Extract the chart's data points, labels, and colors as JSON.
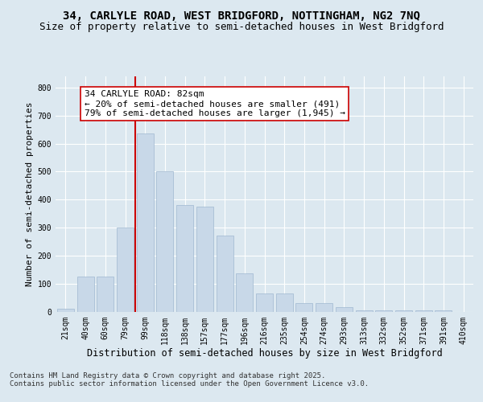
{
  "title1": "34, CARLYLE ROAD, WEST BRIDGFORD, NOTTINGHAM, NG2 7NQ",
  "title2": "Size of property relative to semi-detached houses in West Bridgford",
  "xlabel": "Distribution of semi-detached houses by size in West Bridgford",
  "ylabel": "Number of semi-detached properties",
  "categories": [
    "21sqm",
    "40sqm",
    "60sqm",
    "79sqm",
    "99sqm",
    "118sqm",
    "138sqm",
    "157sqm",
    "177sqm",
    "196sqm",
    "216sqm",
    "235sqm",
    "254sqm",
    "274sqm",
    "293sqm",
    "313sqm",
    "332sqm",
    "352sqm",
    "371sqm",
    "391sqm",
    "410sqm"
  ],
  "values": [
    10,
    125,
    125,
    300,
    635,
    500,
    380,
    375,
    270,
    135,
    65,
    65,
    30,
    30,
    15,
    5,
    5,
    5,
    5,
    5,
    0
  ],
  "bar_color": "#c8d8e8",
  "bar_edge_color": "#a0b8d0",
  "vline_color": "#cc0000",
  "annotation_text": "34 CARLYLE ROAD: 82sqm\n← 20% of semi-detached houses are smaller (491)\n79% of semi-detached houses are larger (1,945) →",
  "annotation_box_color": "#ffffff",
  "annotation_box_edge": "#cc0000",
  "ylim": [
    0,
    840
  ],
  "yticks": [
    0,
    100,
    200,
    300,
    400,
    500,
    600,
    700,
    800
  ],
  "footer_text": "Contains HM Land Registry data © Crown copyright and database right 2025.\nContains public sector information licensed under the Open Government Licence v3.0.",
  "background_color": "#dce8f0",
  "plot_bg_color": "#dce8f0",
  "title1_fontsize": 10,
  "title2_fontsize": 9,
  "xlabel_fontsize": 8.5,
  "ylabel_fontsize": 8,
  "tick_fontsize": 7,
  "annotation_fontsize": 8,
  "footer_fontsize": 6.5
}
